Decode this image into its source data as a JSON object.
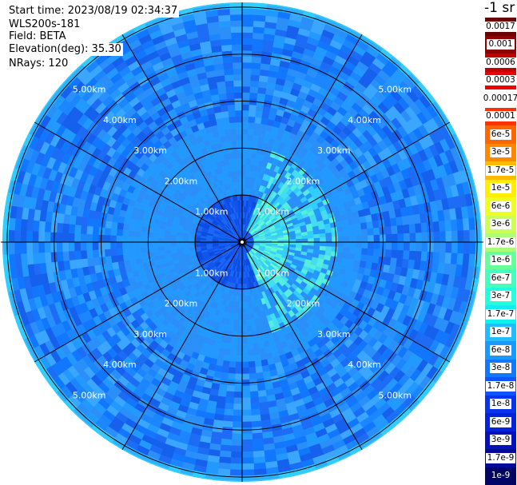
{
  "info": {
    "start_time": "Start time: 2023/08/19 02:34:37",
    "instrument": "WLS200s-181",
    "field": "Field: BETA",
    "elevation": "Elevation(deg): 35.30",
    "nrays": "NRays: 120"
  },
  "colorbar": {
    "unit": "-1 sr",
    "labels": [
      "0.0017",
      "0.001",
      "0.0006",
      "0.0003",
      "0.00017",
      "0.0001",
      "6e-5",
      "3e-5",
      "1.7e-5",
      "1e-5",
      "6e-6",
      "3e-6",
      "1.7e-6",
      "1e-6",
      "6e-7",
      "3e-7",
      "1.7e-7",
      "1e-7",
      "6e-8",
      "3e-8",
      "1.7e-8",
      "1e-8",
      "6e-9",
      "3e-9",
      "1.7e-9",
      "1e-9"
    ],
    "colors": [
      "#6b0000",
      "#8f0000",
      "#c20000",
      "#ee0000",
      "#ffffff",
      "#ff3300",
      "#ff6600",
      "#ff8800",
      "#ffbb00",
      "#ffee00",
      "#eeff22",
      "#ccff55",
      "#aaff77",
      "#66ff99",
      "#44ffbb",
      "#22ffdd",
      "#11eeee",
      "#22bbff",
      "#1799ff",
      "#1177ff",
      "#0f55ff",
      "#0a33ee",
      "#0522dd",
      "#0511bb",
      "#050b99",
      "#030566"
    ]
  },
  "range_rings": {
    "labels": [
      "1.00km",
      "2.00km",
      "3.00km",
      "4.00km",
      "5.00km"
    ],
    "range_km": [
      1,
      2,
      3,
      4,
      5
    ]
  },
  "scan": {
    "rays": 120,
    "max_range_km": 5.1
  }
}
